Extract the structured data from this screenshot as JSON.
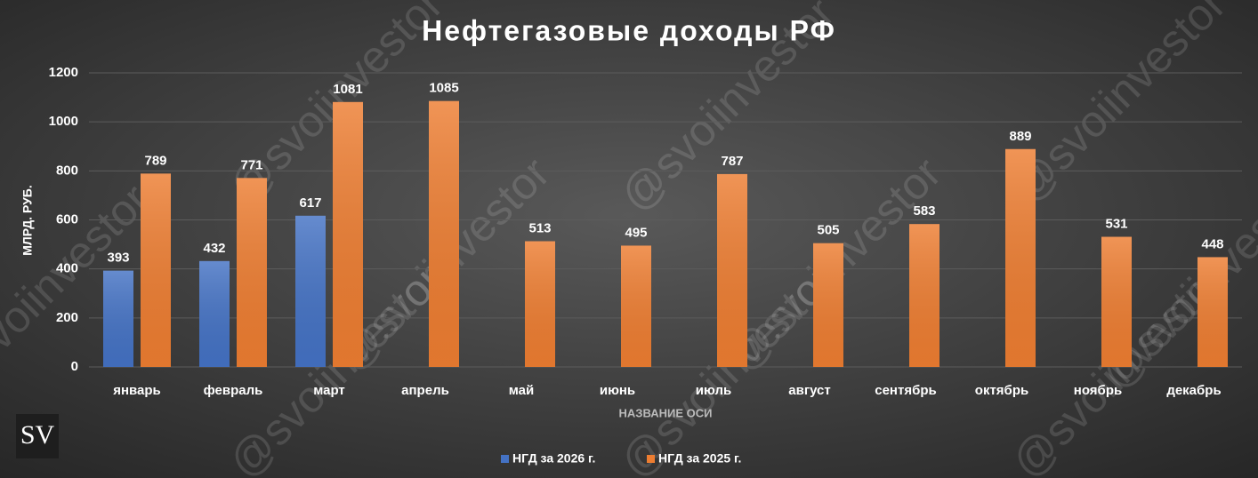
{
  "chart_data": {
    "type": "bar",
    "title": "Нефтегазовые доходы РФ",
    "y_label": "МЛРД. РУБ.",
    "x_label": "НАЗВАНИЕ ОСИ",
    "watermark": "@svoiinvestor",
    "logo": "SV",
    "categories": [
      "январь",
      "февраль",
      "март",
      "апрель",
      "май",
      "июнь",
      "июль",
      "август",
      "сентябрь",
      "октябрь",
      "ноябрь",
      "декабрь"
    ],
    "series": [
      {
        "name": "НГД за 2026 г.",
        "color": "#4472c4",
        "values": [
          393,
          432,
          617,
          null,
          null,
          null,
          null,
          null,
          null,
          null,
          null,
          null
        ]
      },
      {
        "name": "НГД за 2025 г.",
        "color": "#ed7d31",
        "values": [
          789,
          771,
          1081,
          1085,
          513,
          495,
          787,
          505,
          583,
          889,
          531,
          448
        ]
      }
    ],
    "ylim": [
      0,
      1200
    ],
    "yticks": [
      0,
      200,
      400,
      600,
      800,
      1000,
      1200
    ],
    "grid": true,
    "legend": "bottom"
  }
}
